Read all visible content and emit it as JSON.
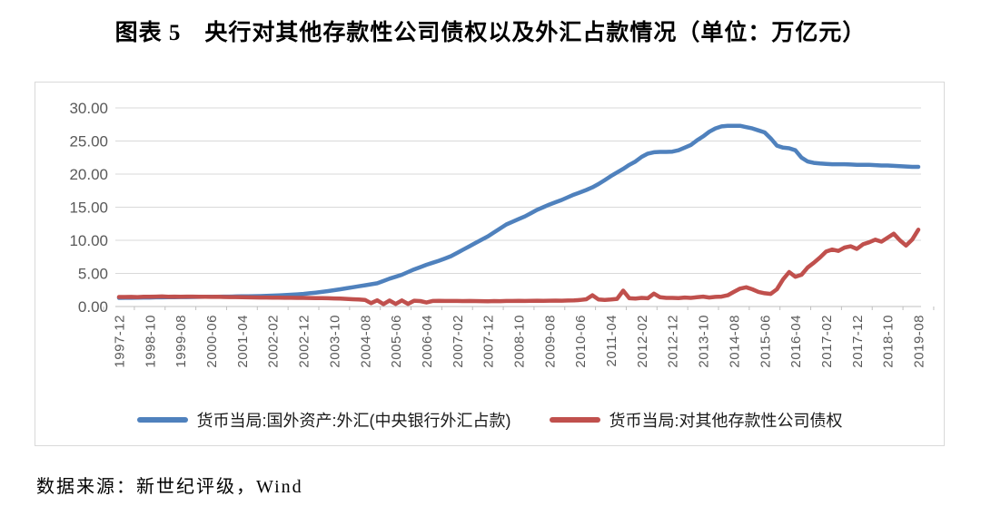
{
  "title": "图表 5　央行对其他存款性公司债权以及外汇占款情况（单位：万亿元）",
  "source_note": "数据来源：新世纪评级，Wind",
  "colors": {
    "series_fx_blue": "#4F81BD",
    "series_claims_red": "#C0504D",
    "gridline": "#D9D9D9",
    "axis_line": "#BFBFBF",
    "tick_label": "#595959",
    "box_border": "#D9D9D9"
  },
  "chart_data": {
    "type": "line",
    "title": "央行对其他存款性公司债权以及外汇占款情况",
    "unit": "万亿元",
    "ylim": [
      0,
      30
    ],
    "y_tick_labels": [
      "0.00",
      "5.00",
      "10.00",
      "15.00",
      "20.00",
      "25.00",
      "30.00"
    ],
    "grid": "horizontal",
    "legend_position": "bottom",
    "x_start": "1997-12",
    "x_end": "2019-08",
    "x_tick_interval_months": 10,
    "points_interval_months": 2,
    "x_tick_labels": [
      "1997-12",
      "1998-10",
      "1999-08",
      "2000-06",
      "2001-04",
      "2002-02",
      "2002-12",
      "2003-10",
      "2004-08",
      "2005-06",
      "2006-04",
      "2007-02",
      "2007-12",
      "2008-10",
      "2009-08",
      "2010-06",
      "2011-04",
      "2012-02",
      "2012-12",
      "2013-10",
      "2014-08",
      "2015-06",
      "2016-04",
      "2017-02",
      "2017-12",
      "2018-10",
      "2019-08"
    ],
    "series": [
      {
        "name": "货币当局:国外资产:外汇(中央银行外汇占款)",
        "color": "#4F81BD",
        "values": [
          1.3,
          1.31,
          1.32,
          1.33,
          1.35,
          1.36,
          1.38,
          1.39,
          1.4,
          1.41,
          1.42,
          1.43,
          1.44,
          1.45,
          1.46,
          1.47,
          1.48,
          1.49,
          1.5,
          1.52,
          1.53,
          1.55,
          1.56,
          1.58,
          1.6,
          1.64,
          1.68,
          1.72,
          1.78,
          1.84,
          1.9,
          2.0,
          2.1,
          2.2,
          2.33,
          2.46,
          2.6,
          2.75,
          2.9,
          3.05,
          3.2,
          3.35,
          3.5,
          3.85,
          4.2,
          4.5,
          4.8,
          5.2,
          5.6,
          5.95,
          6.3,
          6.6,
          6.9,
          7.25,
          7.6,
          8.1,
          8.6,
          9.1,
          9.6,
          10.1,
          10.6,
          11.2,
          11.8,
          12.4,
          12.8,
          13.2,
          13.6,
          14.1,
          14.6,
          15.0,
          15.4,
          15.75,
          16.1,
          16.5,
          16.9,
          17.25,
          17.6,
          18.0,
          18.5,
          19.1,
          19.7,
          20.25,
          20.8,
          21.4,
          21.9,
          22.6,
          23.1,
          23.3,
          23.35,
          23.35,
          23.4,
          23.6,
          24.0,
          24.4,
          25.1,
          25.7,
          26.4,
          26.9,
          27.2,
          27.3,
          27.3,
          27.3,
          27.1,
          26.9,
          26.6,
          26.3,
          25.4,
          24.3,
          24.0,
          23.9,
          23.6,
          22.5,
          21.9,
          21.7,
          21.6,
          21.55,
          21.5,
          21.5,
          21.5,
          21.45,
          21.4,
          21.4,
          21.4,
          21.35,
          21.3,
          21.3,
          21.25,
          21.2,
          21.15,
          21.1,
          21.1
        ]
      },
      {
        "name": "货币当局:对其他存款性公司债权",
        "color": "#C0504D",
        "values": [
          1.44,
          1.44,
          1.45,
          1.43,
          1.46,
          1.48,
          1.5,
          1.52,
          1.48,
          1.5,
          1.47,
          1.49,
          1.5,
          1.47,
          1.48,
          1.45,
          1.46,
          1.44,
          1.42,
          1.43,
          1.4,
          1.39,
          1.37,
          1.36,
          1.35,
          1.34,
          1.33,
          1.32,
          1.31,
          1.3,
          1.3,
          1.29,
          1.28,
          1.27,
          1.25,
          1.22,
          1.2,
          1.15,
          1.1,
          1.06,
          1.0,
          0.5,
          0.95,
          0.35,
          0.9,
          0.38,
          0.92,
          0.4,
          0.88,
          0.82,
          0.6,
          0.84,
          0.85,
          0.83,
          0.84,
          0.83,
          0.82,
          0.83,
          0.82,
          0.81,
          0.8,
          0.82,
          0.81,
          0.83,
          0.84,
          0.85,
          0.84,
          0.86,
          0.87,
          0.86,
          0.88,
          0.89,
          0.88,
          0.9,
          0.92,
          0.98,
          1.1,
          1.7,
          1.05,
          1.0,
          1.05,
          1.15,
          2.4,
          1.25,
          1.2,
          1.3,
          1.25,
          1.95,
          1.4,
          1.3,
          1.3,
          1.28,
          1.35,
          1.3,
          1.4,
          1.5,
          1.35,
          1.45,
          1.5,
          1.7,
          2.2,
          2.7,
          2.9,
          2.6,
          2.2,
          2.0,
          1.9,
          2.6,
          4.1,
          5.2,
          4.5,
          4.8,
          5.9,
          6.6,
          7.4,
          8.3,
          8.6,
          8.4,
          8.9,
          9.1,
          8.7,
          9.4,
          9.7,
          10.1,
          9.8,
          10.4,
          11.0,
          10.0,
          9.2,
          10.1,
          11.6
        ]
      }
    ]
  }
}
